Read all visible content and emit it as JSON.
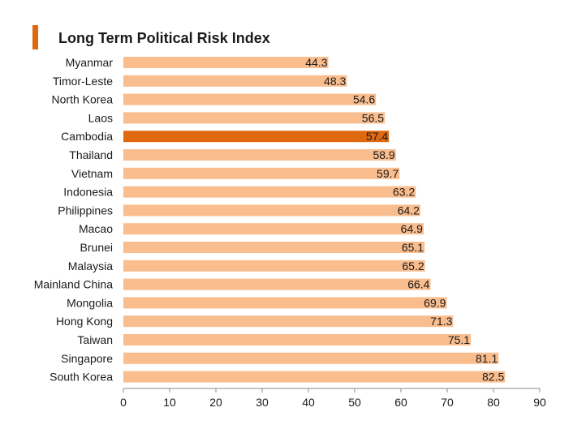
{
  "chart_data": {
    "type": "bar",
    "orientation": "horizontal",
    "title": "Long Term Political Risk Index",
    "categories": [
      "Myanmar",
      "Timor-Leste",
      "North Korea",
      "Laos",
      "Cambodia",
      "Thailand",
      "Vietnam",
      "Indonesia",
      "Philippines",
      "Macao",
      "Brunei",
      "Malaysia",
      "Mainland China",
      "Mongolia",
      "Hong Kong",
      "Taiwan",
      "Singapore",
      "South Korea"
    ],
    "values": [
      44.3,
      48.3,
      54.6,
      56.5,
      57.4,
      58.9,
      59.7,
      63.2,
      64.2,
      64.9,
      65.1,
      65.2,
      66.4,
      69.9,
      71.3,
      75.1,
      81.1,
      82.5
    ],
    "value_labels": [
      "44.3",
      "48.3",
      "54.6",
      "56.5",
      "57.4",
      "58.9",
      "59.7",
      "63.2",
      "64.2",
      "64.9",
      "65.1",
      "65.2",
      "66.4",
      "69.9",
      "71.3",
      "75.1",
      "81.1",
      "82.5"
    ],
    "highlight": "Cambodia",
    "xlim": [
      0,
      90
    ],
    "xticks": [
      "0",
      "10",
      "20",
      "30",
      "40",
      "50",
      "60",
      "70",
      "80",
      "90"
    ],
    "xlabel": "",
    "ylabel": "",
    "grid": false
  },
  "colors": {
    "bar": "#F9BD8E",
    "highlight": "#E0690F",
    "accent": "#E0690F",
    "axis": "#8c8c8c"
  }
}
